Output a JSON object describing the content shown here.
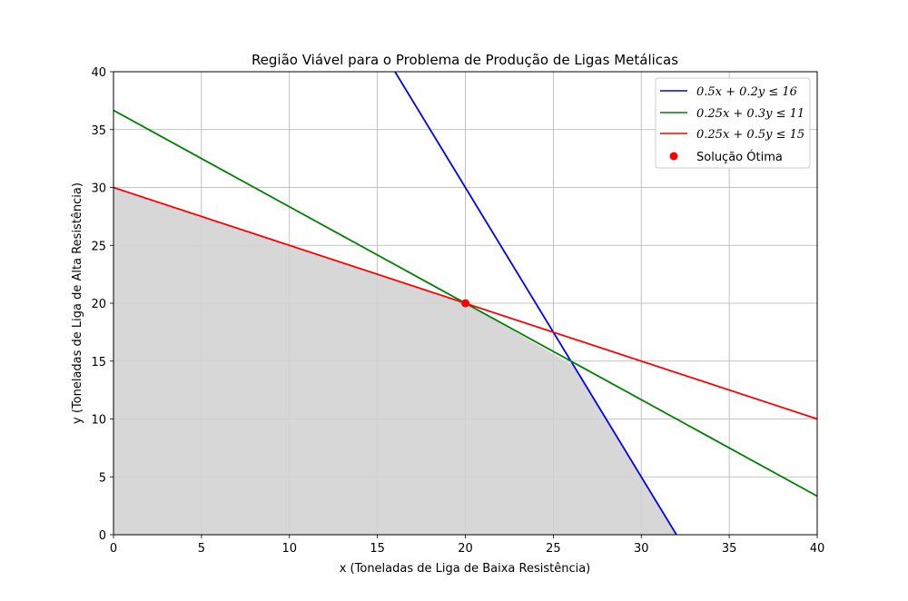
{
  "chart_data": {
    "type": "line",
    "title": "Região Viável para o Problema de Produção de Ligas Metálicas",
    "xlabel": "x (Toneladas de Liga de Baixa Resistência)",
    "ylabel": "y (Toneladas de Liga de Alta Resistência)",
    "xlim": [
      0,
      40
    ],
    "ylim": [
      0,
      40
    ],
    "xticks": [
      0,
      5,
      10,
      15,
      20,
      25,
      30,
      35,
      40
    ],
    "yticks": [
      0,
      5,
      10,
      15,
      20,
      25,
      30,
      35,
      40
    ],
    "grid": true,
    "legend_position": "top-right",
    "series": [
      {
        "name": "0.5x + 0.2y ≤ 16",
        "color": "#0000ff",
        "x": [
          16,
          32
        ],
        "y": [
          40,
          0
        ]
      },
      {
        "name": "0.25x + 0.3y ≤ 11",
        "color": "#008000",
        "x": [
          0,
          40
        ],
        "y": [
          36.667,
          3.333
        ]
      },
      {
        "name": "0.25x + 0.5y ≤ 15",
        "color": "#ff0000",
        "x": [
          0,
          40
        ],
        "y": [
          30,
          10
        ]
      }
    ],
    "feasible_region": {
      "color": "#d3d3d3",
      "x": [
        0,
        0,
        20,
        26.154,
        32
      ],
      "y": [
        0,
        30,
        20,
        14.615,
        0
      ]
    },
    "optimal_point": {
      "name": "Solução Ótima",
      "color": "#ff0000",
      "x": 20,
      "y": 20
    }
  }
}
